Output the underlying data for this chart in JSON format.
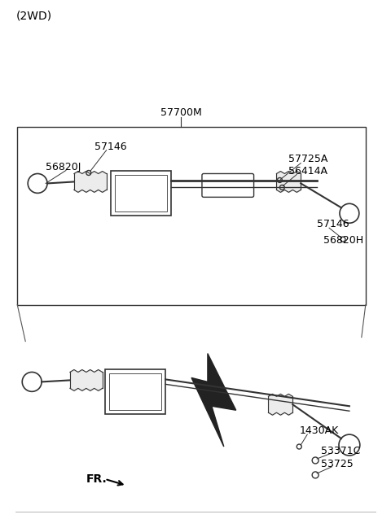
{
  "background_color": "#ffffff",
  "border_color": "#000000",
  "line_color": "#333333",
  "text_color": "#000000",
  "title_text": "(2WD)",
  "part_label_57700M": "57700M",
  "part_label_57146_1": "57146",
  "part_label_56820J": "56820J",
  "part_label_57725A": "57725A",
  "part_label_56414A": "56414A",
  "part_label_57146_2": "57146",
  "part_label_56820H": "56820H",
  "part_label_1430AK": "1430AK",
  "part_label_53371C": "53371C",
  "part_label_53725": "53725",
  "fr_label": "FR.",
  "font_size_main": 9,
  "font_size_title": 10,
  "fig_width": 4.8,
  "fig_height": 6.54,
  "dpi": 100
}
